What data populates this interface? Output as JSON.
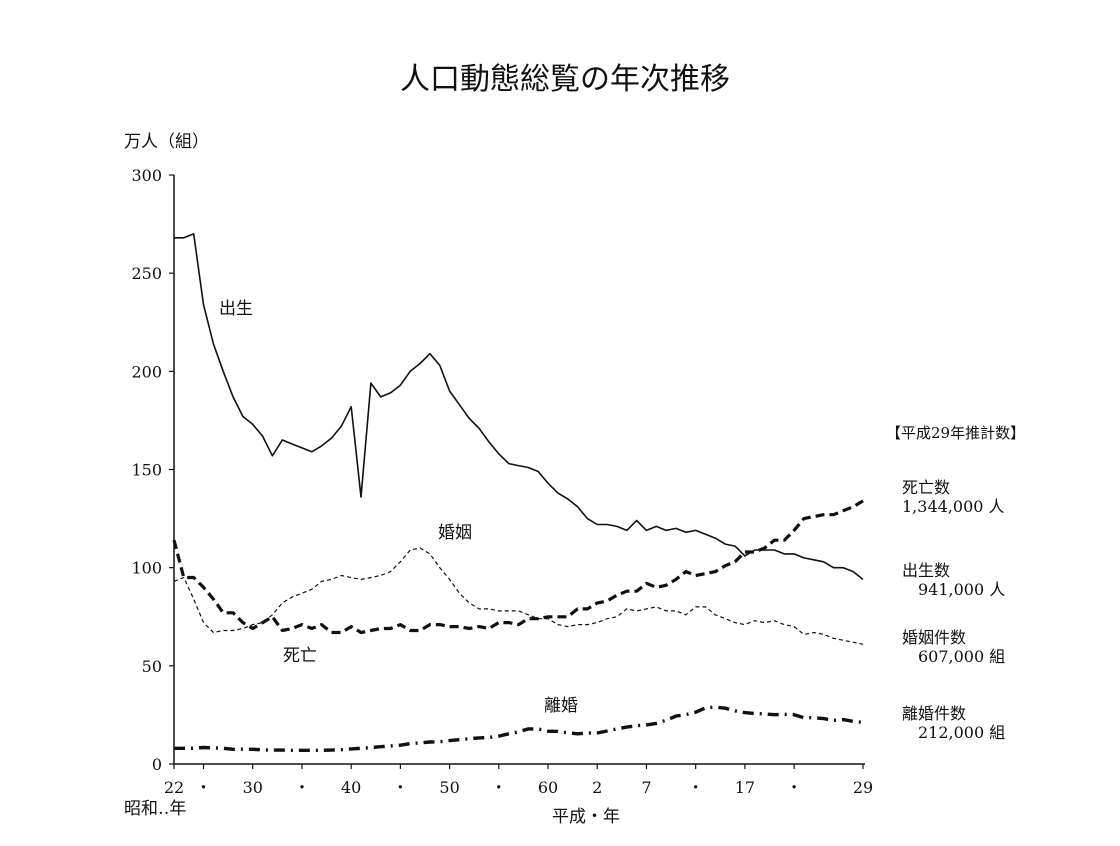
{
  "chart_data": {
    "type": "line",
    "title": "人口動態総覧の年次推移",
    "ylabel": "万人（組）",
    "ylim": [
      0,
      300
    ],
    "yticks": [
      0,
      50,
      100,
      150,
      200,
      250,
      300
    ],
    "xlim": [
      1947,
      2017
    ],
    "xticks": [
      {
        "year": 1947,
        "label": "22"
      },
      {
        "year": 1950,
        "label": "・"
      },
      {
        "year": 1955,
        "label": "30"
      },
      {
        "year": 1960,
        "label": "・"
      },
      {
        "year": 1965,
        "label": "40"
      },
      {
        "year": 1970,
        "label": "・"
      },
      {
        "year": 1975,
        "label": "50"
      },
      {
        "year": 1980,
        "label": "・"
      },
      {
        "year": 1985,
        "label": "60"
      },
      {
        "year": 1990,
        "label": "2"
      },
      {
        "year": 1995,
        "label": "7"
      },
      {
        "year": 2000,
        "label": "・"
      },
      {
        "year": 2005,
        "label": "17"
      },
      {
        "year": 2010,
        "label": "・"
      },
      {
        "year": 2017,
        "label": "29"
      }
    ],
    "xlabel_showa": "昭和‥年",
    "xlabel_heisei": "平成・年",
    "series": [
      {
        "name": "出生",
        "style": "solid",
        "x": [
          1947,
          1948,
          1949,
          1950,
          1951,
          1952,
          1953,
          1954,
          1955,
          1956,
          1957,
          1958,
          1959,
          1960,
          1961,
          1962,
          1963,
          1964,
          1965,
          1966,
          1967,
          1968,
          1969,
          1970,
          1971,
          1972,
          1973,
          1974,
          1975,
          1976,
          1977,
          1978,
          1979,
          1980,
          1981,
          1982,
          1983,
          1984,
          1985,
          1986,
          1987,
          1988,
          1989,
          1990,
          1991,
          1992,
          1993,
          1994,
          1995,
          1996,
          1997,
          1998,
          1999,
          2000,
          2001,
          2002,
          2003,
          2004,
          2005,
          2006,
          2007,
          2008,
          2009,
          2010,
          2011,
          2012,
          2013,
          2014,
          2015,
          2016,
          2017
        ],
        "y": [
          268,
          268,
          270,
          234,
          214,
          200,
          187,
          177,
          173,
          167,
          157,
          165,
          163,
          161,
          159,
          162,
          166,
          172,
          182,
          136,
          194,
          187,
          189,
          193,
          200,
          204,
          209,
          203,
          190,
          183,
          176,
          171,
          164,
          158,
          153,
          152,
          151,
          149,
          143,
          138,
          135,
          131,
          125,
          122,
          122,
          121,
          119,
          124,
          119,
          121,
          119,
          120,
          118,
          119,
          117,
          115,
          112,
          111,
          106,
          109,
          109,
          109,
          107,
          107,
          105,
          104,
          103,
          100,
          100,
          98,
          94
        ]
      },
      {
        "name": "死亡",
        "style": "bold-dash",
        "x": [
          1947,
          1948,
          1949,
          1950,
          1951,
          1952,
          1953,
          1954,
          1955,
          1956,
          1957,
          1958,
          1959,
          1960,
          1961,
          1962,
          1963,
          1964,
          1965,
          1966,
          1967,
          1968,
          1969,
          1970,
          1971,
          1972,
          1973,
          1974,
          1975,
          1976,
          1977,
          1978,
          1979,
          1980,
          1981,
          1982,
          1983,
          1984,
          1985,
          1986,
          1987,
          1988,
          1989,
          1990,
          1991,
          1992,
          1993,
          1994,
          1995,
          1996,
          1997,
          1998,
          1999,
          2000,
          2001,
          2002,
          2003,
          2004,
          2005,
          2006,
          2007,
          2008,
          2009,
          2010,
          2011,
          2012,
          2013,
          2014,
          2015,
          2016,
          2017
        ],
        "y": [
          114,
          95,
          95,
          90,
          84,
          77,
          77,
          72,
          69,
          72,
          75,
          68,
          69,
          71,
          69,
          71,
          67,
          67,
          70,
          67,
          68,
          69,
          69,
          71,
          68,
          68,
          71,
          71,
          70,
          70,
          69,
          70,
          69,
          72,
          72,
          71,
          74,
          74,
          75,
          75,
          75,
          79,
          79,
          82,
          83,
          86,
          88,
          88,
          92,
          90,
          91,
          94,
          98,
          96,
          97,
          98,
          101,
          103,
          108,
          108,
          110,
          114,
          114,
          119,
          125,
          126,
          127,
          127,
          129,
          131,
          134
        ]
      },
      {
        "name": "婚姻",
        "style": "thin-dash",
        "x": [
          1947,
          1948,
          1949,
          1950,
          1951,
          1952,
          1953,
          1954,
          1955,
          1956,
          1957,
          1958,
          1959,
          1960,
          1961,
          1962,
          1963,
          1964,
          1965,
          1966,
          1967,
          1968,
          1969,
          1970,
          1971,
          1972,
          1973,
          1974,
          1975,
          1976,
          1977,
          1978,
          1979,
          1980,
          1981,
          1982,
          1983,
          1984,
          1985,
          1986,
          1987,
          1988,
          1989,
          1990,
          1991,
          1992,
          1993,
          1994,
          1995,
          1996,
          1997,
          1998,
          1999,
          2000,
          2001,
          2002,
          2003,
          2004,
          2005,
          2006,
          2007,
          2008,
          2009,
          2010,
          2011,
          2012,
          2013,
          2014,
          2015,
          2016,
          2017
        ],
        "y": [
          93,
          95,
          84,
          72,
          67,
          68,
          68,
          69,
          71,
          72,
          76,
          82,
          85,
          87,
          89,
          93,
          94,
          96,
          95,
          94,
          95,
          96,
          98,
          103,
          109,
          110,
          107,
          100,
          94,
          87,
          82,
          79,
          79,
          78,
          78,
          78,
          76,
          74,
          74,
          71,
          70,
          71,
          71,
          72,
          74,
          75,
          79,
          78,
          79,
          80,
          78,
          78,
          76,
          80,
          80,
          76,
          74,
          72,
          71,
          73,
          72,
          73,
          71,
          70,
          66,
          67,
          66,
          64,
          63,
          62,
          61
        ]
      },
      {
        "name": "離婚",
        "style": "dash-dot",
        "x": [
          1947,
          1948,
          1949,
          1950,
          1951,
          1952,
          1953,
          1954,
          1955,
          1956,
          1957,
          1958,
          1959,
          1960,
          1961,
          1962,
          1963,
          1964,
          1965,
          1966,
          1967,
          1968,
          1969,
          1970,
          1971,
          1972,
          1973,
          1974,
          1975,
          1976,
          1977,
          1978,
          1979,
          1980,
          1981,
          1982,
          1983,
          1984,
          1985,
          1986,
          1987,
          1988,
          1989,
          1990,
          1991,
          1992,
          1993,
          1994,
          1995,
          1996,
          1997,
          1998,
          1999,
          2000,
          2001,
          2002,
          2003,
          2004,
          2005,
          2006,
          2007,
          2008,
          2009,
          2010,
          2011,
          2012,
          2013,
          2014,
          2015,
          2016,
          2017
        ],
        "y": [
          8,
          8,
          8,
          8.4,
          8.2,
          8,
          7.5,
          7.6,
          7.5,
          7.2,
          7.1,
          7.1,
          7,
          7,
          7,
          7,
          7.1,
          7.3,
          7.7,
          8,
          8.4,
          8.8,
          9.2,
          9.6,
          10.4,
          10.8,
          11.2,
          11.3,
          11.9,
          12.4,
          12.9,
          13.3,
          13.5,
          14.2,
          15.4,
          16.4,
          17.9,
          17.9,
          16.7,
          16.6,
          15.9,
          15.4,
          15.8,
          15.8,
          16.8,
          17.9,
          18.8,
          19.5,
          19.9,
          20.7,
          22.3,
          24.4,
          25.1,
          26.4,
          28.6,
          29,
          28.4,
          27.1,
          26.2,
          25.7,
          25.5,
          25.1,
          25.3,
          25.1,
          23.6,
          23.6,
          23.1,
          22.2,
          22.6,
          21.7,
          21.2
        ]
      }
    ],
    "annotations": {
      "birth_label": "出生",
      "marriage_label": "婚姻",
      "death_label": "死亡",
      "divorce_label": "離婚"
    },
    "estimates": {
      "heading": "【平成29年推計数】",
      "deaths_name": "死亡数",
      "deaths_value": "1,344,000 人",
      "births_name": "出生数",
      "births_value": "941,000 人",
      "marriages_name": "婚姻件数",
      "marriages_value": "607,000 組",
      "divorces_name": "離婚件数",
      "divorces_value": "212,000 組"
    }
  }
}
